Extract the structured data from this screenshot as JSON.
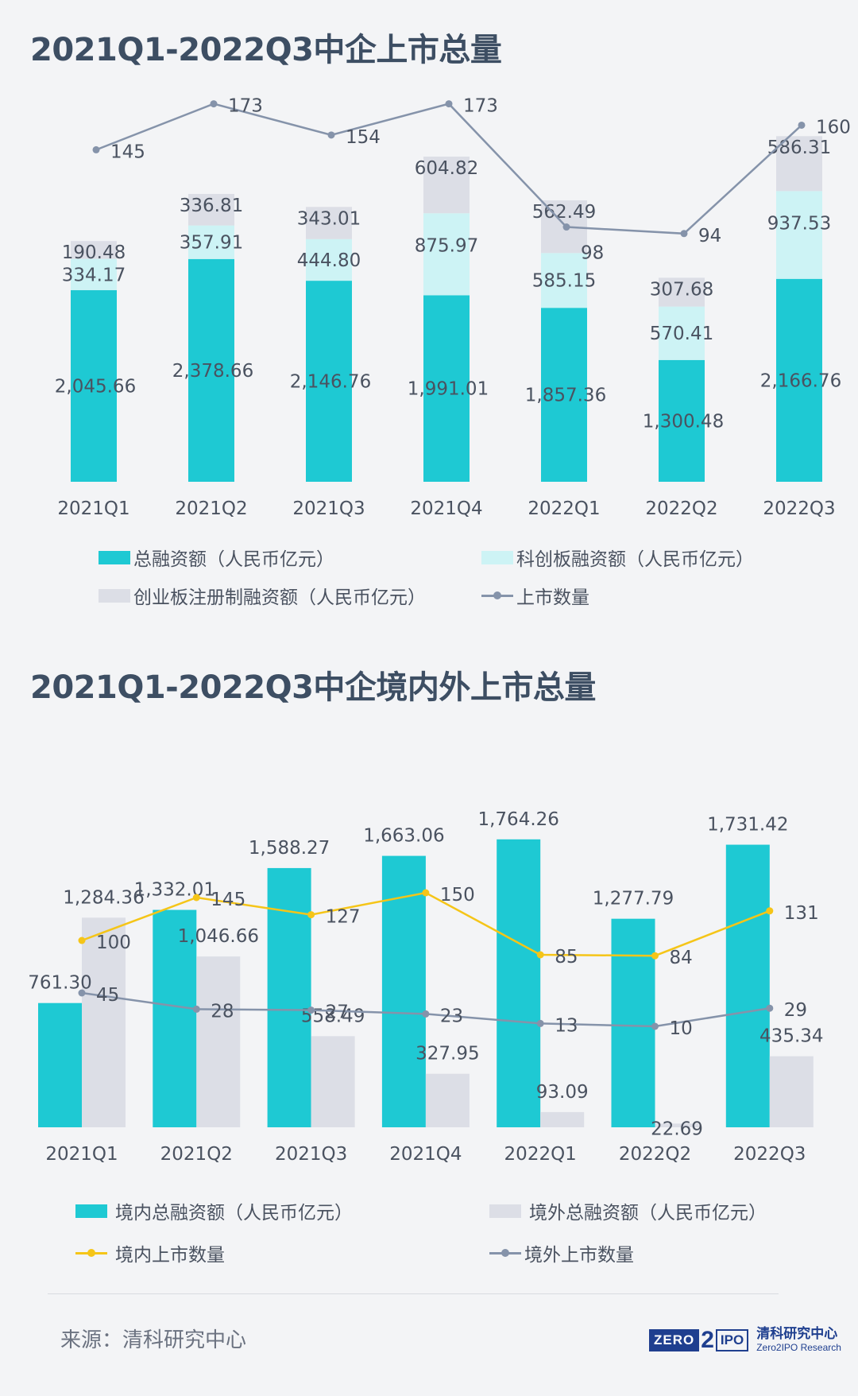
{
  "chart_data": [
    {
      "type": "bar",
      "title": "2021Q1-2022Q3中企上市总量",
      "stacked": true,
      "categories": [
        "2021Q1",
        "2021Q2",
        "2021Q3",
        "2021Q4",
        "2022Q1",
        "2022Q2",
        "2022Q3"
      ],
      "series": [
        {
          "name": "总融资额（人民币亿元）",
          "type": "bar",
          "color": "#1ec9d3",
          "values": [
            2045.66,
            2378.66,
            2146.76,
            1991.01,
            1857.36,
            1300.48,
            2166.76
          ],
          "labels": [
            "2,045.66",
            "2,378.66",
            "2,146.76",
            "1,991.01",
            "1,857.36",
            "1,300.48",
            "2,166.76"
          ]
        },
        {
          "name": "科创板融资额（人民币亿元）",
          "type": "bar",
          "color": "#cdf3f5",
          "values": [
            334.17,
            357.91,
            444.8,
            875.97,
            585.15,
            570.41,
            937.53
          ],
          "labels": [
            "334.17",
            "357.91",
            "444.80",
            "875.97",
            "585.15",
            "570.41",
            "937.53"
          ]
        },
        {
          "name": "创业板注册制融资额（人民币亿元）",
          "type": "bar",
          "color": "#dcdee6",
          "values": [
            190.48,
            336.81,
            343.01,
            604.82,
            562.49,
            307.68,
            586.31
          ],
          "labels": [
            "190.48",
            "336.81",
            "343.01",
            "604.82",
            "562.49",
            "307.68",
            "586.31"
          ]
        },
        {
          "name": "上市数量",
          "type": "line",
          "color": "#8593aa",
          "values": [
            145,
            173,
            154,
            173,
            98,
            94,
            160
          ],
          "labels": [
            "145",
            "173",
            "154",
            "173",
            "98",
            "94",
            "160"
          ]
        }
      ],
      "legend_position": "bottom",
      "grid": false
    },
    {
      "type": "bar",
      "title": "2021Q1-2022Q3中企境内外上市总量",
      "stacked": false,
      "categories": [
        "2021Q1",
        "2021Q2",
        "2021Q3",
        "2021Q4",
        "2022Q1",
        "2022Q2",
        "2022Q3"
      ],
      "series": [
        {
          "name": "境内总融资额（人民币亿元）",
          "type": "bar",
          "color": "#1ec9d3",
          "values": [
            761.3,
            1332.01,
            1588.27,
            1663.06,
            1764.26,
            1277.79,
            1731.42
          ],
          "labels": [
            "761.30",
            "1,332.01",
            "1,588.27",
            "1,663.06",
            "1,764.26",
            "1,277.79",
            "1,731.42"
          ]
        },
        {
          "name": "境外总融资额（人民币亿元）",
          "type": "bar",
          "color": "#dcdee6",
          "values": [
            1284.36,
            1046.66,
            558.49,
            327.95,
            93.09,
            22.69,
            435.34
          ],
          "labels": [
            "1,284.36",
            "1,046.66",
            "558.49",
            "327.95",
            "93.09",
            "22.69",
            "435.34"
          ]
        },
        {
          "name": "境内上市数量",
          "type": "line",
          "color": "#f5c518",
          "values": [
            100,
            145,
            127,
            150,
            85,
            84,
            131
          ],
          "labels": [
            "100",
            "145",
            "127",
            "150",
            "85",
            "84",
            "131"
          ]
        },
        {
          "name": "境外上市数量",
          "type": "line",
          "color": "#8593aa",
          "values": [
            45,
            28,
            27,
            23,
            13,
            10,
            29
          ],
          "labels": [
            "45",
            "28",
            "27",
            "23",
            "13",
            "10",
            "29"
          ]
        }
      ],
      "legend_position": "bottom",
      "grid": false
    }
  ],
  "footer": {
    "source": "来源：清科研究中心",
    "logo_zero": "ZERO",
    "logo_two": "2",
    "logo_ipo": "IPO",
    "logo_cn": "清科研究中心",
    "logo_en": "Zero2IPO Research"
  }
}
